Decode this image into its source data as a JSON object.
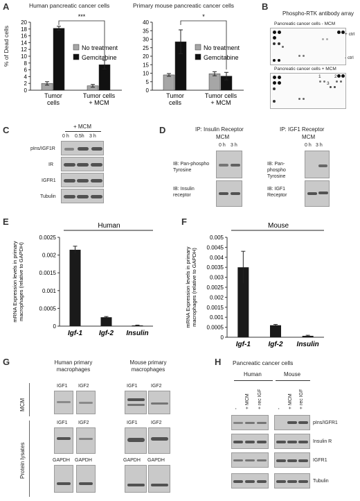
{
  "panel_letters": [
    "A",
    "B",
    "C",
    "D",
    "E",
    "F",
    "G",
    "H"
  ],
  "panelA": {
    "left_title": "Human pancreatic cancer cells",
    "right_title": "Primary mouse pancreatic cancer cells",
    "ylabel": "% of Dead cells",
    "sig_left": "***",
    "sig_right": "*",
    "legend": [
      "No treatment",
      "Gemcitabine"
    ]
  },
  "panelB": {
    "title": "Phospho-RTK antibody array",
    "top_label": "Pancreatic cancer cells    - MCM",
    "bottom_label": "Pancreatic cancer cells    + MCM",
    "plus_ctrl": "+ ctrl",
    "minus_ctrl": "- ctrl",
    "spot_numbers": [
      "1",
      "2",
      "3"
    ]
  },
  "panelC": {
    "treatment": "+ MCM",
    "times": [
      "0 h",
      "0.5h",
      "3 h"
    ],
    "rows": [
      "pIns/IGF1R",
      "IR",
      "IGFR1",
      "Tubulin"
    ]
  },
  "panelD": {
    "left_title": "IP: Insulin Receptor",
    "right_title": "IP: IGF1 Receptor",
    "mcm": "MCM",
    "times": [
      "0 h",
      "3 h"
    ],
    "left_ib": [
      "IB: Pan-phospho Tyrosine",
      "IB: Insulin receptor"
    ],
    "right_ib": [
      "IB: Pan-phospho Tyrosine",
      "IB: IGF1 Receptor"
    ]
  },
  "panelE": {
    "group": "Human",
    "ylabel": "mRNA Expression levels in primary macrophages (relative to GAPDH)"
  },
  "panelF": {
    "group": "Mouse",
    "ylabel": "mRNA Expression levels in primary macrophages (relative to GAPDH)"
  },
  "panelG": {
    "human_title": "Human primary macrophages",
    "mouse_title": "Mouse primary macrophages",
    "row_mcm": "MCM",
    "row_lysate": "Protein lysates",
    "lanes": [
      "IGF1",
      "IGF2"
    ],
    "gapdh": "GAPDH"
  },
  "panelH": {
    "title": "Pancreatic cancer cells",
    "human": "Human",
    "mouse": "Mouse",
    "lanes": [
      "-",
      "+ MCM",
      "+ rec IGF"
    ],
    "rows": [
      "pIns/IGFR1",
      "Insulin R",
      "IGFR1",
      "Tubulin"
    ]
  },
  "chart_data": [
    {
      "type": "bar",
      "panel": "A-left",
      "title": "Human pancreatic cancer cells",
      "categories": [
        "Tumor cells",
        "Tumor cells + MCM"
      ],
      "series": [
        {
          "name": "No treatment",
          "values": [
            2,
            1.3
          ],
          "errors": [
            0.5,
            0.4
          ]
        },
        {
          "name": "Gemcitabine",
          "values": [
            18.2,
            7.5
          ],
          "errors": [
            0.6,
            1.3
          ]
        }
      ],
      "ylabel": "% of Dead cells",
      "ylim": [
        0,
        20
      ],
      "yticks": [
        0,
        2,
        4,
        6,
        8,
        10,
        12,
        14,
        16,
        18,
        20
      ],
      "annotation": "***",
      "colors": {
        "No treatment": "#a6a6a6",
        "Gemcitabine": "#111111"
      }
    },
    {
      "type": "bar",
      "panel": "A-right",
      "title": "Primary mouse pancreatic cancer cells",
      "categories": [
        "Tumor cells",
        "Tumor cells + MCM"
      ],
      "series": [
        {
          "name": "No treatment",
          "values": [
            9,
            9.7
          ],
          "errors": [
            0.8,
            1.2
          ]
        },
        {
          "name": "Gemcitabine",
          "values": [
            28.5,
            8.3
          ],
          "errors": [
            7,
            2.2
          ]
        }
      ],
      "ylim": [
        0,
        40
      ],
      "yticks": [
        0,
        5,
        10,
        15,
        20,
        25,
        30,
        35,
        40
      ],
      "annotation": "*",
      "colors": {
        "No treatment": "#a6a6a6",
        "Gemcitabine": "#111111"
      }
    },
    {
      "type": "bar",
      "panel": "E",
      "categories": [
        "Igf-1",
        "Igf-2",
        "Insulin"
      ],
      "values": [
        0.00215,
        0.00025,
        2e-05
      ],
      "errors": [
        0.0001,
        2e-05,
        1e-05
      ],
      "ylabel": "mRNA Expression levels in primary macrophages (relative to GAPDH)",
      "ylim": [
        0,
        0.0025
      ],
      "yticks": [
        0,
        0.0005,
        0.001,
        0.0015,
        0.002,
        0.0025
      ],
      "ytick_labels": [
        "0",
        "0.0005",
        "0.001",
        "0.0015",
        "0.002",
        "0.0025"
      ],
      "group_label": "Human"
    },
    {
      "type": "bar",
      "panel": "F",
      "categories": [
        "Igf-1",
        "Igf-2",
        "Insulin"
      ],
      "values": [
        0.0035,
        0.0006,
        7e-05
      ],
      "errors": [
        0.0008,
        4e-05,
        3e-05
      ],
      "ylabel": "mRNA Expression levels in primary macrophages (relative to GAPDH)",
      "ylim": [
        0,
        0.005
      ],
      "yticks": [
        0,
        0.0005,
        0.001,
        0.0015,
        0.002,
        0.0025,
        0.003,
        0.0035,
        0.004,
        0.0045,
        0.005
      ],
      "ytick_labels": [
        "0",
        "0.0005",
        "0.001",
        "0.0015",
        "0.002",
        "0.0025",
        "0.003",
        "0.0035",
        "0.004",
        "0.0045",
        "0.005"
      ],
      "group_label": "Mouse"
    }
  ]
}
